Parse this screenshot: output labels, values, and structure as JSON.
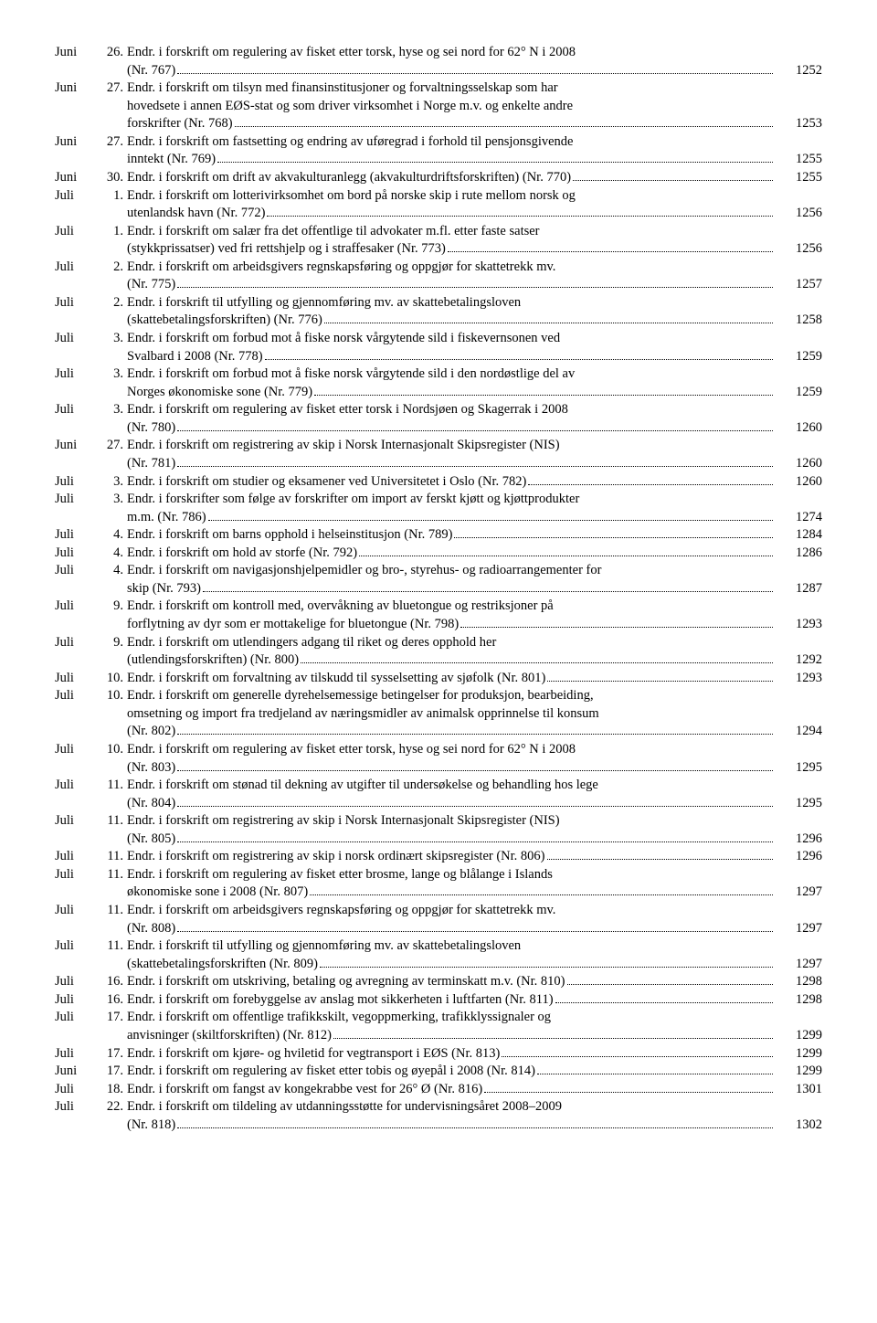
{
  "entries": [
    {
      "month": "Juni",
      "day": "26.",
      "lines": [
        "Endr. i forskrift om regulering av fisket etter torsk, hyse og sei nord for 62° N i 2008",
        "(Nr. 767)"
      ],
      "page": "1252"
    },
    {
      "month": "Juni",
      "day": "27.",
      "lines": [
        "Endr. i forskrift om tilsyn med finansinstitusjoner og forvaltningsselskap som har",
        "hovedsete i annen EØS-stat og som driver virksomhet i Norge m.v. og enkelte andre",
        "forskrifter (Nr. 768)"
      ],
      "page": "1253"
    },
    {
      "month": "Juni",
      "day": "27.",
      "lines": [
        "Endr. i forskrift om fastsetting og endring av uføregrad i forhold til pensjonsgivende",
        "inntekt (Nr. 769)"
      ],
      "page": "1255"
    },
    {
      "month": "Juni",
      "day": "30.",
      "lines": [
        "Endr. i forskrift om drift av akvakulturanlegg (akvakulturdriftsforskriften) (Nr. 770)"
      ],
      "page": "1255"
    },
    {
      "month": "Juli",
      "day": "1.",
      "lines": [
        "Endr. i forskrift om lotterivirksomhet om bord på norske skip i rute mellom norsk og",
        "utenlandsk havn (Nr. 772)"
      ],
      "page": "1256"
    },
    {
      "month": "Juli",
      "day": "1.",
      "lines": [
        "Endr. i forskrift om salær fra det offentlige til advokater m.fl. etter faste satser",
        "(stykkprissatser) ved fri rettshjelp og i straffesaker (Nr. 773)"
      ],
      "page": "1256"
    },
    {
      "month": "Juli",
      "day": "2.",
      "lines": [
        "Endr. i forskrift om arbeidsgivers regnskapsføring og oppgjør for skattetrekk mv.",
        "(Nr. 775)"
      ],
      "page": "1257"
    },
    {
      "month": "Juli",
      "day": "2.",
      "lines": [
        "Endr. i forskrift til utfylling og gjennomføring mv. av skattebetalingsloven",
        "(skattebetalingsforskriften) (Nr. 776)"
      ],
      "page": "1258"
    },
    {
      "month": "Juli",
      "day": "3.",
      "lines": [
        "Endr. i forskrift om forbud mot å fiske norsk vårgytende sild i fiskevernsonen ved",
        "Svalbard i 2008 (Nr. 778)"
      ],
      "page": "1259"
    },
    {
      "month": "Juli",
      "day": "3.",
      "lines": [
        "Endr. i forskrift om forbud mot å fiske norsk vårgytende sild i den nordøstlige del av",
        "Norges økonomiske sone (Nr. 779)"
      ],
      "page": "1259"
    },
    {
      "month": "Juli",
      "day": "3.",
      "lines": [
        "Endr. i forskrift om regulering av fisket etter torsk i Nordsjøen og Skagerrak i 2008",
        "(Nr. 780)"
      ],
      "page": "1260"
    },
    {
      "month": "Juni",
      "day": "27.",
      "lines": [
        "Endr. i forskrift om registrering av skip i Norsk Internasjonalt Skipsregister (NIS)",
        "(Nr. 781)"
      ],
      "page": "1260"
    },
    {
      "month": "Juli",
      "day": "3.",
      "lines": [
        "Endr. i forskrift om studier og eksamener ved Universitetet i Oslo (Nr. 782)"
      ],
      "page": "1260"
    },
    {
      "month": "Juli",
      "day": "3.",
      "lines": [
        "Endr. i forskrifter som følge av forskrifter om import av ferskt kjøtt og kjøttprodukter",
        "m.m. (Nr. 786)"
      ],
      "page": "1274"
    },
    {
      "month": "Juli",
      "day": "4.",
      "lines": [
        "Endr. i forskrift om barns opphold i helseinstitusjon (Nr. 789)"
      ],
      "page": "1284"
    },
    {
      "month": "Juli",
      "day": "4.",
      "lines": [
        "Endr. i forskrift om hold av storfe (Nr. 792)"
      ],
      "page": "1286"
    },
    {
      "month": "Juli",
      "day": "4.",
      "lines": [
        "Endr. i forskrift om navigasjonshjelpemidler og bro-, styrehus- og radioarrangementer for",
        "skip (Nr. 793)"
      ],
      "page": "1287"
    },
    {
      "month": "Juli",
      "day": "9.",
      "lines": [
        "Endr. i forskrift om kontroll med, overvåkning av bluetongue og restriksjoner på",
        "forflytning av dyr som er mottakelige for bluetongue (Nr. 798)"
      ],
      "page": "1293"
    },
    {
      "month": "Juli",
      "day": "9.",
      "lines": [
        "Endr. i forskrift om utlendingers adgang til riket og deres opphold her",
        "(utlendingsforskriften) (Nr. 800)"
      ],
      "page": "1292"
    },
    {
      "month": "Juli",
      "day": "10.",
      "lines": [
        "Endr. i forskrift om forvaltning av tilskudd til sysselsetting av sjøfolk (Nr. 801)"
      ],
      "page": "1293"
    },
    {
      "month": "Juli",
      "day": "10.",
      "lines": [
        "Endr. i forskrift om generelle dyrehelsemessige betingelser for produksjon, bearbeiding,",
        "omsetning og import fra tredjeland av næringsmidler av animalsk opprinnelse til konsum",
        "(Nr. 802)"
      ],
      "page": "1294"
    },
    {
      "month": "Juli",
      "day": "10.",
      "lines": [
        "Endr. i forskrift om regulering av fisket etter torsk, hyse og sei nord for 62° N i 2008",
        "(Nr. 803)"
      ],
      "page": "1295"
    },
    {
      "month": "Juli",
      "day": "11.",
      "lines": [
        "Endr. i forskrift om stønad til dekning av utgifter til undersøkelse og behandling hos lege",
        "(Nr. 804)"
      ],
      "page": "1295"
    },
    {
      "month": "Juli",
      "day": "11.",
      "lines": [
        "Endr. i forskrift om registrering av skip i Norsk Internasjonalt Skipsregister (NIS)",
        "(Nr. 805)"
      ],
      "page": "1296"
    },
    {
      "month": "Juli",
      "day": "11.",
      "lines": [
        "Endr. i forskrift om registrering av skip i norsk ordinært skipsregister (Nr. 806)"
      ],
      "page": "1296"
    },
    {
      "month": "Juli",
      "day": "11.",
      "lines": [
        "Endr. i forskrift om regulering av fisket etter brosme, lange og blålange i Islands",
        "økonomiske sone i 2008 (Nr. 807)"
      ],
      "page": "1297"
    },
    {
      "month": "Juli",
      "day": "11.",
      "lines": [
        "Endr. i forskrift om arbeidsgivers regnskapsføring og oppgjør for skattetrekk mv.",
        "(Nr. 808)"
      ],
      "page": "1297"
    },
    {
      "month": "Juli",
      "day": "11.",
      "lines": [
        "Endr. i forskrift til utfylling og gjennomføring mv. av skattebetalingsloven",
        "(skattebetalingsforskriften (Nr. 809)"
      ],
      "page": "1297"
    },
    {
      "month": "Juli",
      "day": "16.",
      "lines": [
        "Endr. i forskrift om utskriving, betaling og avregning av terminskatt m.v. (Nr. 810)"
      ],
      "page": "1298"
    },
    {
      "month": "Juli",
      "day": "16.",
      "lines": [
        "Endr. i forskrift om forebyggelse av anslag mot sikkerheten i luftfarten (Nr. 811)"
      ],
      "page": "1298"
    },
    {
      "month": "Juli",
      "day": "17.",
      "lines": [
        "Endr. i forskrift om offentlige trafikkskilt, vegoppmerking, trafikklyssignaler og",
        "anvisninger (skiltforskriften) (Nr. 812)"
      ],
      "page": "1299"
    },
    {
      "month": "Juli",
      "day": "17.",
      "lines": [
        "Endr. i forskrift om kjøre- og hviletid for vegtransport i EØS (Nr. 813)"
      ],
      "page": "1299"
    },
    {
      "month": "Juni",
      "day": "17.",
      "lines": [
        "Endr. i forskrift om regulering av fisket etter tobis og øyepål i 2008 (Nr. 814)"
      ],
      "page": "1299"
    },
    {
      "month": "Juli",
      "day": "18.",
      "lines": [
        "Endr. i forskrift om fangst av kongekrabbe vest for 26° Ø (Nr. 816)"
      ],
      "page": "1301"
    },
    {
      "month": "Juli",
      "day": "22.",
      "lines": [
        "Endr. i forskrift om tildeling av utdanningsstøtte for undervisningsåret 2008–2009",
        "(Nr. 818)"
      ],
      "page": "1302"
    }
  ]
}
